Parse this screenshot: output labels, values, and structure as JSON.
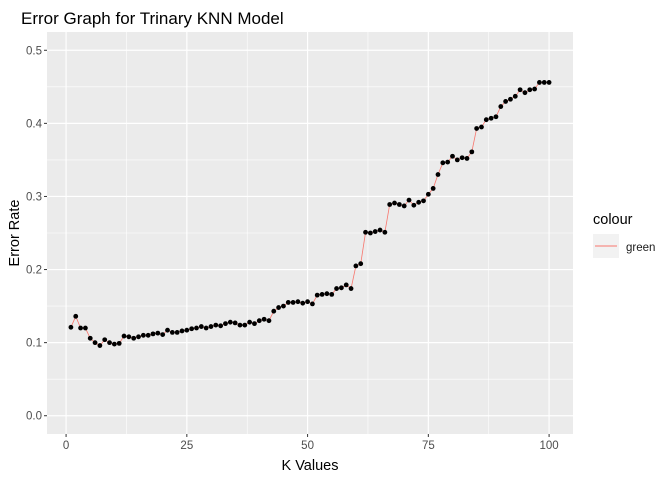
{
  "chart_data": {
    "type": "line",
    "title": "Error Graph for Trinary KNN Model",
    "xlabel": "K Values",
    "ylabel": "Error Rate",
    "xlim": [
      -3.95,
      104.95
    ],
    "ylim": [
      -0.025,
      0.525
    ],
    "x_ticks": [
      0,
      25,
      50,
      75,
      100
    ],
    "x_tick_labels": [
      "0",
      "25",
      "50",
      "75",
      "100"
    ],
    "y_ticks": [
      0.0,
      0.1,
      0.2,
      0.3,
      0.4,
      0.5
    ],
    "y_tick_labels": [
      "0.0",
      "0.1",
      "0.2",
      "0.3",
      "0.4",
      "0.5"
    ],
    "grid": true,
    "legend": {
      "title": "colour",
      "position": "right",
      "entries": [
        "green"
      ]
    },
    "colors": {
      "line": "#f8766d",
      "points": "#000000",
      "panel": "#ebebeb",
      "grid": "#ffffff"
    },
    "series": [
      {
        "name": "green",
        "x": [
          1,
          2,
          3,
          4,
          5,
          6,
          7,
          8,
          9,
          10,
          11,
          12,
          13,
          14,
          15,
          16,
          17,
          18,
          19,
          20,
          21,
          22,
          23,
          24,
          25,
          26,
          27,
          28,
          29,
          30,
          31,
          32,
          33,
          34,
          35,
          36,
          37,
          38,
          39,
          40,
          41,
          42,
          43,
          44,
          45,
          46,
          47,
          48,
          49,
          50,
          51,
          52,
          53,
          54,
          55,
          56,
          57,
          58,
          59,
          60,
          61,
          62,
          63,
          64,
          65,
          66,
          67,
          68,
          69,
          70,
          71,
          72,
          73,
          74,
          75,
          76,
          77,
          78,
          79,
          80,
          81,
          82,
          83,
          84,
          85,
          86,
          87,
          88,
          89,
          90,
          91,
          92,
          93,
          94,
          95,
          96,
          97,
          98,
          99,
          100
        ],
        "values": [
          0.121,
          0.136,
          0.12,
          0.12,
          0.106,
          0.1,
          0.096,
          0.104,
          0.1,
          0.098,
          0.099,
          0.109,
          0.108,
          0.106,
          0.108,
          0.11,
          0.11,
          0.112,
          0.113,
          0.111,
          0.117,
          0.114,
          0.114,
          0.116,
          0.117,
          0.119,
          0.12,
          0.122,
          0.12,
          0.122,
          0.124,
          0.123,
          0.126,
          0.128,
          0.127,
          0.124,
          0.124,
          0.128,
          0.126,
          0.13,
          0.132,
          0.13,
          0.143,
          0.148,
          0.15,
          0.155,
          0.155,
          0.156,
          0.154,
          0.156,
          0.153,
          0.165,
          0.166,
          0.167,
          0.166,
          0.174,
          0.175,
          0.179,
          0.174,
          0.205,
          0.208,
          0.251,
          0.25,
          0.252,
          0.254,
          0.251,
          0.289,
          0.291,
          0.289,
          0.287,
          0.295,
          0.288,
          0.292,
          0.294,
          0.303,
          0.311,
          0.33,
          0.346,
          0.347,
          0.355,
          0.35,
          0.353,
          0.352,
          0.361,
          0.393,
          0.395,
          0.405,
          0.407,
          0.409,
          0.423,
          0.43,
          0.433,
          0.437,
          0.446,
          0.442,
          0.446,
          0.447,
          0.456,
          0.456,
          0.456
        ]
      }
    ]
  }
}
